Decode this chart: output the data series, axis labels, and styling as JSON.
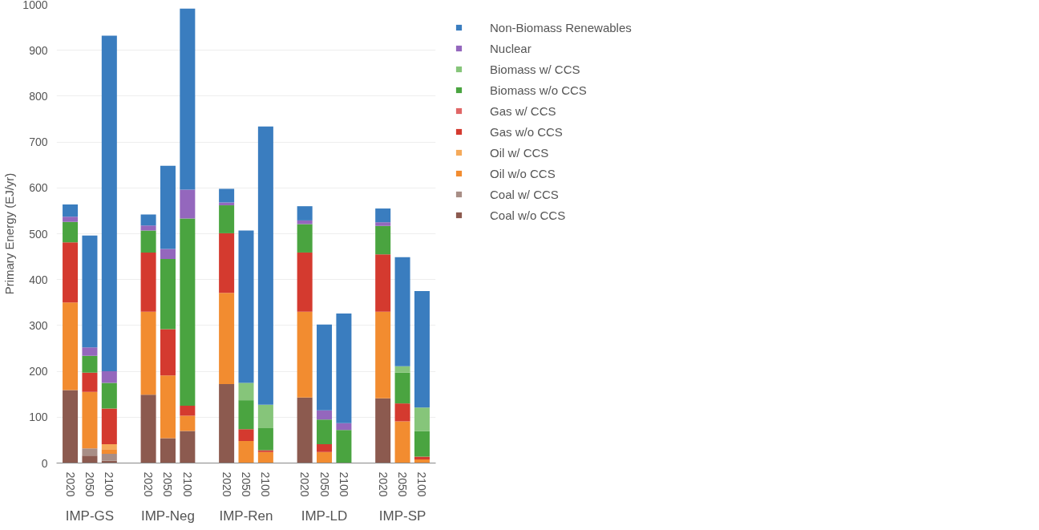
{
  "chart_data": {
    "type": "bar",
    "stacked": true,
    "ylabel": "Primary Energy (EJ/yr)",
    "categories": [
      "2020",
      "2050",
      "2100",
      "2020",
      "2050",
      "2100",
      "2020",
      "2050",
      "2100",
      "2020",
      "2050",
      "2100",
      "2020",
      "2050",
      "2100"
    ],
    "annotations": [
      "IMP-GS",
      "IMP-Neg",
      "IMP-Ren",
      "IMP-LD",
      "IMP-SP"
    ],
    "ylim": [
      0,
      1000
    ],
    "yticks": [
      0,
      100,
      200,
      300,
      400,
      500,
      600,
      700,
      800,
      900,
      1000
    ],
    "grid": "y",
    "legend": "right",
    "series": [
      {
        "name": "Coal w/o CCS",
        "color": "#8c5a4f",
        "values": [
          159,
          16,
          5,
          149,
          54,
          70,
          172,
          null,
          null,
          143,
          null,
          null,
          141,
          null,
          null
        ]
      },
      {
        "name": "Coal w/ CCS",
        "color": "#a88e86",
        "values": [
          null,
          16,
          15,
          null,
          null,
          null,
          null,
          null,
          null,
          null,
          null,
          null,
          null,
          null,
          null
        ]
      },
      {
        "name": "Oil w/o CCS",
        "color": "#f28c30",
        "values": [
          191,
          123,
          10,
          181,
          137,
          33,
          199,
          48,
          24,
          187,
          24,
          null,
          189,
          91,
          8
        ]
      },
      {
        "name": "Oil w/ CCS",
        "color": "#f5aa5a",
        "values": [
          null,
          null,
          11,
          null,
          null,
          null,
          null,
          null,
          null,
          null,
          null,
          null,
          null,
          null,
          null
        ]
      },
      {
        "name": "Gas w/o CCS",
        "color": "#d43a2f",
        "values": [
          131,
          42,
          78,
          129,
          101,
          22,
          130,
          26,
          4,
          129,
          17,
          null,
          125,
          39,
          6
        ]
      },
      {
        "name": "Gas w/ CCS",
        "color": "#e06666",
        "values": [
          null,
          null,
          null,
          null,
          null,
          null,
          null,
          null,
          null,
          null,
          null,
          null,
          null,
          null,
          null
        ]
      },
      {
        "name": "Biomass w/o CCS",
        "color": "#4aa440",
        "values": [
          45,
          37,
          56,
          48,
          153,
          408,
          61,
          63,
          48,
          62,
          54,
          72,
          62,
          67,
          56
        ]
      },
      {
        "name": "Biomass w/ CCS",
        "color": "#86c57a",
        "values": [
          null,
          null,
          null,
          null,
          null,
          null,
          null,
          38,
          51,
          null,
          null,
          null,
          null,
          14,
          51
        ]
      },
      {
        "name": "Nuclear",
        "color": "#9467bd",
        "values": [
          11,
          18,
          25,
          11,
          22,
          63,
          6,
          null,
          null,
          8,
          20,
          15,
          8,
          null,
          null
        ]
      },
      {
        "name": "Non-Biomass Renewables",
        "color": "#3a7dbf",
        "values": [
          27,
          244,
          732,
          24,
          181,
          395,
          30,
          332,
          607,
          31,
          187,
          239,
          30,
          238,
          254
        ]
      }
    ]
  }
}
